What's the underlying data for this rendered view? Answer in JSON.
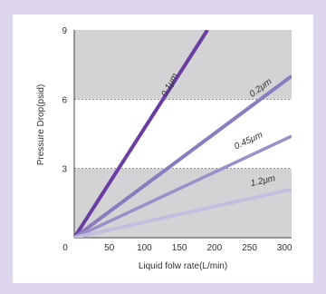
{
  "chart_data": {
    "type": "line",
    "xlabel": "Liquid folw rate(L/min)",
    "ylabel": "Pressure Drop(psid)",
    "xlim": [
      0,
      310
    ],
    "ylim": [
      0,
      9
    ],
    "x_ticks": [
      "0",
      "50",
      "100",
      "150",
      "200",
      "250",
      "300"
    ],
    "y_ticks": [
      "3",
      "6",
      "9"
    ],
    "shaded_bands": [
      [
        0,
        3
      ],
      [
        6,
        9
      ]
    ],
    "series": [
      {
        "name": "0.1μm",
        "color": "#6a3ea1",
        "x": [
          0,
          190
        ],
        "y": [
          0,
          9
        ]
      },
      {
        "name": "0.2μm",
        "color": "#8b7cc0",
        "x": [
          0,
          310
        ],
        "y": [
          0,
          7
        ]
      },
      {
        "name": "0.45μm",
        "color": "#9c8fc9",
        "x": [
          0,
          310
        ],
        "y": [
          0,
          4.4
        ]
      },
      {
        "name": "1.2μm",
        "color": "#c5bde0",
        "x": [
          0,
          310
        ],
        "y": [
          0,
          2.1
        ]
      }
    ]
  }
}
